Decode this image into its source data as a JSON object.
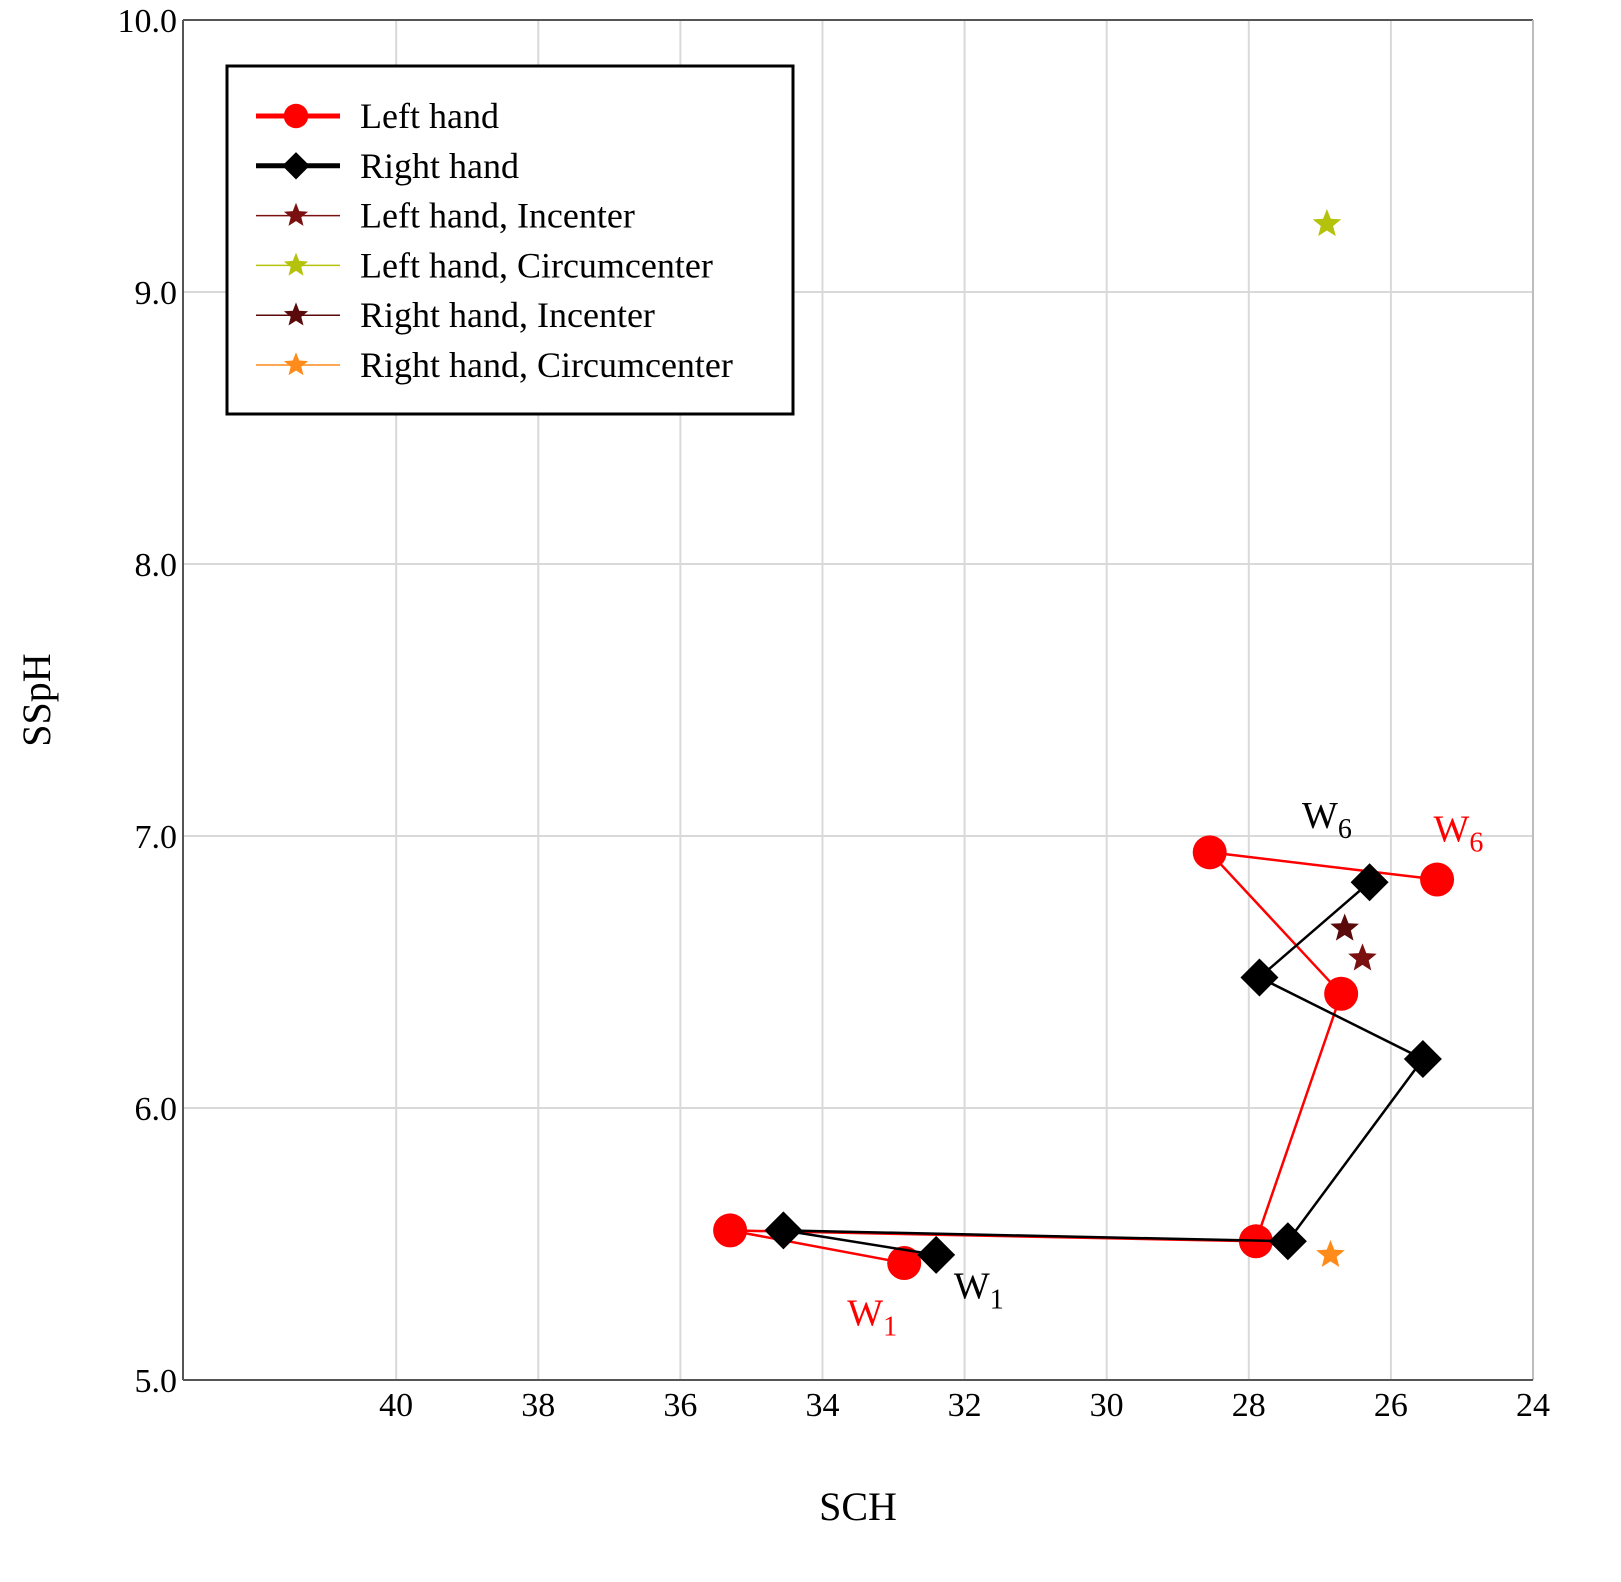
{
  "chart_data": {
    "type": "line",
    "xlabel": "SCH",
    "ylabel": "SSpH",
    "xlim": [
      24,
      43
    ],
    "x_reversed": true,
    "ylim": [
      5.0,
      10.0
    ],
    "x_ticks": [
      40,
      38,
      36,
      34,
      32,
      30,
      28,
      26,
      24
    ],
    "x_tick_labels": [
      "40",
      "38",
      "36",
      "34",
      "32",
      "30",
      "28",
      "26",
      "24"
    ],
    "y_ticks": [
      5.0,
      6.0,
      7.0,
      8.0,
      9.0,
      10.0
    ],
    "y_tick_labels": [
      "5.0",
      "6.0",
      "7.0",
      "8.0",
      "9.0",
      "10.0"
    ],
    "grid": true,
    "legend_position": "top-left",
    "series": [
      {
        "name": "Left hand",
        "color": "#ff0000",
        "marker": "circle",
        "line": "thick",
        "points": [
          {
            "x": 32.85,
            "y": 5.43
          },
          {
            "x": 35.3,
            "y": 5.55
          },
          {
            "x": 27.9,
            "y": 5.51
          },
          {
            "x": 26.7,
            "y": 6.42
          },
          {
            "x": 28.55,
            "y": 6.94
          },
          {
            "x": 25.35,
            "y": 6.84
          }
        ]
      },
      {
        "name": "Right hand",
        "color": "#000000",
        "marker": "diamond",
        "line": "thick",
        "points": [
          {
            "x": 32.4,
            "y": 5.46
          },
          {
            "x": 34.55,
            "y": 5.55
          },
          {
            "x": 27.45,
            "y": 5.51
          },
          {
            "x": 25.55,
            "y": 6.18
          },
          {
            "x": 27.85,
            "y": 6.48
          },
          {
            "x": 26.3,
            "y": 6.83
          }
        ]
      },
      {
        "name": "Left hand, Incenter",
        "color": "#7b1010",
        "marker": "star",
        "line": "thin",
        "points": [
          {
            "x": 26.4,
            "y": 6.55
          }
        ]
      },
      {
        "name": "Left hand, Circumcenter",
        "color": "#b5c20c",
        "marker": "star",
        "line": "thin",
        "points": [
          {
            "x": 26.9,
            "y": 9.25
          }
        ]
      },
      {
        "name": "Right hand, Incenter",
        "color": "#5a0a0a",
        "marker": "star",
        "line": "thin",
        "points": [
          {
            "x": 26.65,
            "y": 6.66
          }
        ]
      },
      {
        "name": "Right hand, Circumcenter",
        "color": "#ff8c1a",
        "marker": "star",
        "line": "thin",
        "points": [
          {
            "x": 26.85,
            "y": 5.46
          }
        ]
      }
    ],
    "annotations": [
      {
        "text": "W",
        "sub": "1",
        "color": "#ff0000",
        "x": 33.3,
        "y": 5.2
      },
      {
        "text": "W",
        "sub": "1",
        "color": "#000000",
        "x": 31.8,
        "y": 5.3
      },
      {
        "text": "W",
        "sub": "6",
        "color": "#000000",
        "x": 26.9,
        "y": 7.03
      },
      {
        "text": "W",
        "sub": "6",
        "color": "#ff0000",
        "x": 25.05,
        "y": 6.98
      }
    ]
  }
}
